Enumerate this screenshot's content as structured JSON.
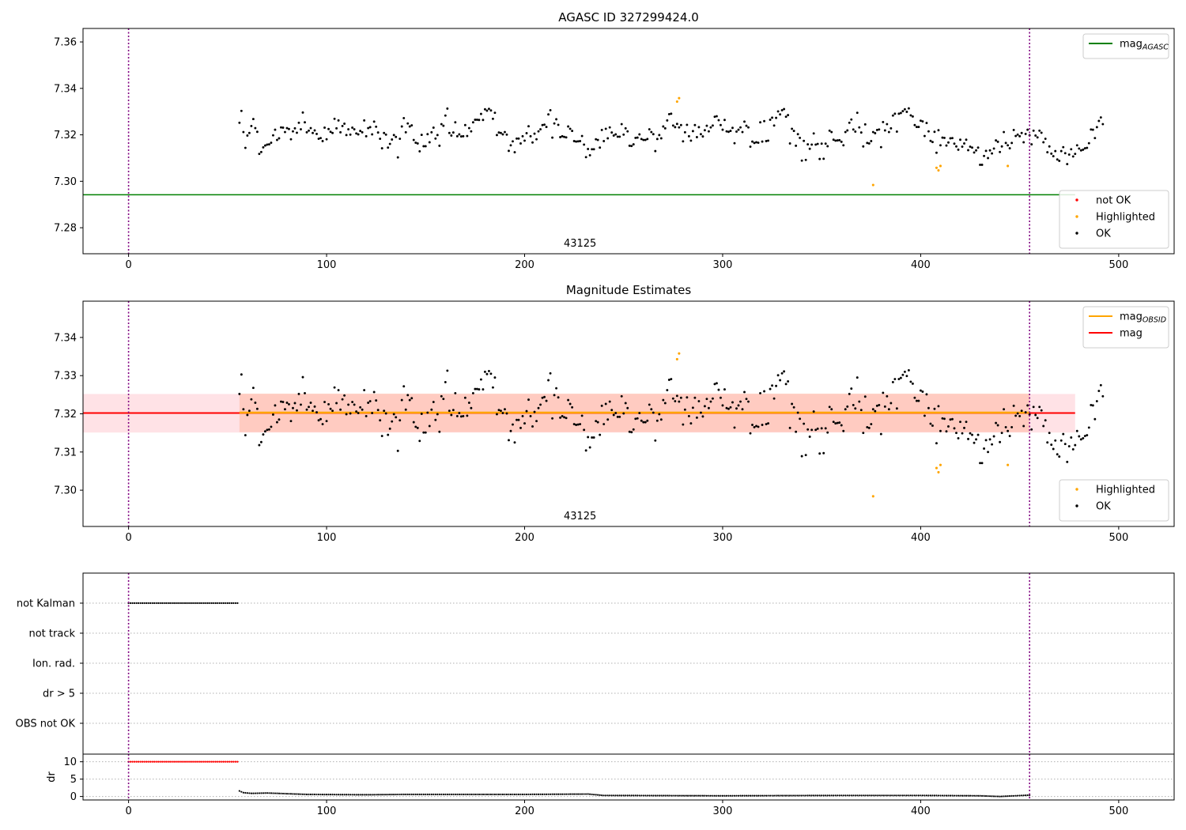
{
  "colors": {
    "ok": "#000000",
    "highlighted": "#ffa500",
    "not_ok": "#ff0000",
    "mag_agasc": "#008000",
    "mag_obsid": "#ffa500",
    "mag": "#ff0000",
    "band_outer": "#ffb6c1",
    "band_inner": "#ffa07a",
    "obs_marker": "#800080",
    "grid": "#b0b0b0"
  },
  "chart_data": [
    {
      "id": "agasc",
      "type": "scatter",
      "title": "AGASC ID 327299424.0",
      "xlim": [
        -23,
        528
      ],
      "ylim": [
        7.2688,
        7.3658
      ],
      "xticks": [
        0,
        100,
        200,
        300,
        400,
        500
      ],
      "yticks": [
        7.28,
        7.3,
        7.32,
        7.34,
        7.36
      ],
      "ytick_labels": [
        "7.28",
        "7.30",
        "7.32",
        "7.34",
        "7.36"
      ],
      "obs_boundaries": [
        0,
        455
      ],
      "obsid_label": {
        "text": "43125",
        "x": 228
      },
      "hlines": [
        {
          "y": 7.2942,
          "x_end": 478,
          "color": "mag_agasc"
        }
      ],
      "legends": [
        {
          "loc": "top-right",
          "items": [
            {
              "label": "mag",
              "sub": "AGASC",
              "kind": "line",
              "color": "mag_agasc"
            }
          ]
        },
        {
          "loc": "bottom-right",
          "items": [
            {
              "label": "not OK",
              "kind": "dot",
              "color": "not_ok"
            },
            {
              "label": "Highlighted",
              "kind": "dot",
              "color": "highlighted"
            },
            {
              "label": "OK",
              "kind": "dot",
              "color": "ok"
            }
          ]
        }
      ],
      "ok_series": {
        "x_start": 56,
        "x_step": 1,
        "y": [
          7.3252,
          7.3303,
          7.3212,
          7.3144,
          7.3197,
          7.3208,
          7.3238,
          7.3268,
          7.3229,
          7.3213,
          7.3118,
          7.3126,
          7.3146,
          7.3154,
          7.3158,
          7.3159,
          7.3166,
          7.3198,
          7.3222,
          7.3178,
          7.3185,
          7.3232,
          7.3231,
          7.3212,
          7.3229,
          7.3225,
          7.3181,
          7.3215,
          7.3228,
          7.3209,
          7.3252,
          7.3224,
          7.3296,
          7.3254,
          7.3211,
          7.3218,
          7.3229,
          7.3208,
          7.3219,
          7.3204,
          7.3183,
          7.3186,
          7.3173,
          7.3231,
          7.3181,
          7.3225,
          7.3213,
          7.3208,
          7.3269,
          7.3228,
          7.3262,
          7.3211,
          7.3238,
          7.3248,
          7.3199,
          7.3224,
          7.3201,
          7.3231,
          7.3224,
          7.3206,
          7.3202,
          7.3217,
          7.3211,
          7.3262,
          7.3194,
          7.3229,
          7.3233,
          7.3202,
          7.3257,
          7.3235,
          7.321,
          7.3183,
          7.3142,
          7.3208,
          7.3201,
          7.3145,
          7.3161,
          7.318,
          7.3199,
          7.3191,
          7.3103,
          7.3183,
          7.3236,
          7.3272,
          7.3211,
          7.3249,
          7.3236,
          7.3241,
          7.3178,
          7.3166,
          7.3163,
          7.3129,
          7.32,
          7.3151,
          7.3151,
          7.3203,
          7.3168,
          7.3211,
          7.3231,
          7.3184,
          7.3199,
          7.3153,
          7.3246,
          7.3239,
          7.3283,
          7.3313,
          7.3208,
          7.3197,
          7.321,
          7.3254,
          7.3194,
          7.3202,
          7.3193,
          7.3194,
          7.3242,
          7.3195,
          7.3229,
          7.3215,
          7.3254,
          7.3265,
          7.3265,
          7.3264,
          7.329,
          7.3264,
          7.331,
          7.3304,
          7.3312,
          7.3305,
          7.3269,
          7.3295,
          7.3199,
          7.321,
          7.3208,
          7.3202,
          7.3212,
          7.3201,
          7.3131,
          7.3155,
          7.3172,
          7.3125,
          7.3184,
          7.3184,
          7.3163,
          7.3194,
          7.3175,
          7.3207,
          7.3237,
          7.3194,
          7.3167,
          7.3205,
          7.3181,
          7.3215,
          7.3224,
          7.3242,
          7.3244,
          7.3234,
          7.3288,
          7.3306,
          7.3188,
          7.3249,
          7.3267,
          7.3243,
          7.319,
          7.3194,
          7.3191,
          7.3189,
          7.3236,
          7.3226,
          7.3217,
          7.3173,
          7.3171,
          7.3172,
          7.3173,
          7.3195,
          7.3158,
          7.3104,
          7.3139,
          7.3112,
          7.3138,
          7.3138,
          7.3181,
          7.3178,
          7.3145,
          7.3221,
          7.3173,
          7.3226,
          7.3185,
          7.3232,
          7.321,
          7.3197,
          7.3202,
          7.3192,
          7.3192,
          7.3246,
          7.3201,
          7.3228,
          7.3215,
          7.3153,
          7.3152,
          7.3159,
          7.3187,
          7.3188,
          7.3202,
          7.3182,
          7.3178,
          7.3178,
          7.3182,
          7.3224,
          7.3212,
          7.3203,
          7.313,
          7.3182,
          7.3199,
          7.3185,
          7.3236,
          7.3228,
          7.3262,
          7.3289,
          7.3291,
          7.324,
          7.3233,
          7.3247,
          7.3232,
          7.3242,
          7.3172,
          7.3211,
          7.3243,
          7.3194,
          7.3175,
          7.3216,
          7.3242,
          7.319,
          7.3233,
          7.3203,
          7.3193,
          7.322,
          7.3239,
          7.3215,
          7.3232,
          7.324,
          7.3278,
          7.328,
          7.3263,
          7.3242,
          7.3222,
          7.3264,
          7.3215,
          7.3213,
          7.3217,
          7.323,
          7.3164,
          7.3214,
          7.3222,
          7.3232,
          7.3212,
          7.3257,
          7.3239,
          7.3232,
          7.3149,
          7.3171,
          7.3165,
          7.3168,
          7.3166,
          7.3254,
          7.3171,
          7.3259,
          7.3173,
          7.3175,
          7.3265,
          7.3274,
          7.324,
          7.3273,
          7.3301,
          7.3288,
          7.3306,
          7.3311,
          7.3278,
          7.3285,
          7.3163,
          7.3226,
          7.3217,
          7.3153,
          7.3203,
          7.3187,
          7.3089,
          7.3174,
          7.3092,
          7.3159,
          7.314,
          7.3158,
          7.3206,
          7.3158,
          7.3161,
          7.3096,
          7.3162,
          7.3097,
          7.3162,
          7.3151,
          7.3218,
          7.3212,
          7.3179,
          7.3175,
          7.3176,
          7.3177,
          7.317,
          7.3155,
          7.3212,
          7.3219,
          7.3252,
          7.3266,
          7.3223,
          7.3214,
          7.3295,
          7.3232,
          7.321,
          7.315,
          7.3245,
          7.3165,
          7.3163,
          7.3173,
          7.3212,
          7.3207,
          7.3221,
          7.3223,
          7.3147,
          7.3255,
          7.3219,
          7.3246,
          7.3212,
          7.3228,
          7.3283,
          7.3291,
          7.3214,
          7.3291,
          7.3294,
          7.3302,
          7.331,
          7.3299,
          7.3314,
          7.3284,
          7.3279,
          7.3242,
          7.3234,
          7.3234,
          7.3261,
          7.3258,
          7.3195,
          7.3251,
          7.3215,
          7.3174,
          7.3169,
          7.3213,
          7.3123,
          7.322,
          7.3155,
          7.3188,
          7.3187,
          7.3154,
          7.3167,
          7.3185,
          7.3186,
          7.3162,
          7.315,
          7.3136,
          7.3179,
          7.3149,
          7.3163,
          7.3179,
          7.3134,
          7.3149,
          7.3145,
          7.3124,
          7.3133,
          7.3145,
          7.3071,
          7.3071,
          7.3109,
          7.3131,
          7.31,
          7.3133,
          7.312,
          7.3141,
          7.3176,
          7.317,
          7.3126,
          7.315,
          7.3212,
          7.3165,
          7.3155,
          7.3142,
          7.3165,
          7.3221,
          7.3195,
          7.3201,
          7.3194,
          7.3208,
          7.3168,
          7.3204,
          7.3222,
          7.3198,
          7.3159,
          7.3218,
          7.3197,
          7.3189,
          7.3218,
          7.3209,
          7.3168,
          7.3183,
          7.3125,
          7.315,
          7.3119,
          7.3108,
          7.313,
          7.3094,
          7.3088,
          7.313,
          7.3147,
          7.3121,
          7.3074,
          7.3115,
          7.3138,
          7.3107,
          7.3118,
          7.3155,
          7.3141,
          7.3133,
          7.3136,
          7.3142,
          7.3144,
          7.3164,
          7.3223,
          7.3222,
          7.3186,
          7.3233,
          7.326,
          7.3275,
          7.3246
        ]
      },
      "highlighted": [
        {
          "x": 277,
          "y": 7.3343
        },
        {
          "x": 278,
          "y": 7.3358
        },
        {
          "x": 376,
          "y": 7.2984
        },
        {
          "x": 408,
          "y": 7.3058
        },
        {
          "x": 409,
          "y": 7.3047
        },
        {
          "x": 410,
          "y": 7.3066
        },
        {
          "x": 444,
          "y": 7.3066
        }
      ]
    },
    {
      "id": "estimates",
      "type": "scatter",
      "title": "Magnitude Estimates",
      "xlim": [
        -23,
        528
      ],
      "ylim": [
        7.2905,
        7.3495
      ],
      "xticks": [
        0,
        100,
        200,
        300,
        400,
        500
      ],
      "yticks": [
        7.3,
        7.31,
        7.32,
        7.33,
        7.34
      ],
      "ytick_labels": [
        "7.30",
        "7.31",
        "7.32",
        "7.33",
        "7.34"
      ],
      "obs_boundaries": [
        0,
        455
      ],
      "obsid_label": {
        "text": "43125",
        "x": 228
      },
      "bands": [
        {
          "x_end": 478,
          "y0": 7.3151,
          "y1": 7.3252,
          "color": "band_outer",
          "opacity": 0.4
        },
        {
          "x_start": 56,
          "x_end": 455,
          "y0": 7.3152,
          "y1": 7.3253,
          "color": "band_inner",
          "opacity": 0.35
        }
      ],
      "hlines": [
        {
          "y": 7.3202,
          "x_end": 478,
          "color": "mag",
          "width": 2
        },
        {
          "y": 7.3203,
          "x_start": 56,
          "x_end": 455,
          "color": "mag_obsid",
          "width": 2.5
        }
      ],
      "legends": [
        {
          "loc": "top-right",
          "items": [
            {
              "label": "mag",
              "sub": "OBSID",
              "kind": "line",
              "color": "mag_obsid"
            },
            {
              "label": "mag",
              "kind": "line",
              "color": "mag"
            }
          ]
        },
        {
          "loc": "bottom-right",
          "items": [
            {
              "label": "Highlighted",
              "kind": "dot",
              "color": "highlighted"
            },
            {
              "label": "OK",
              "kind": "dot",
              "color": "ok"
            }
          ]
        }
      ],
      "ok_series": {
        "same_as": "agasc"
      },
      "highlighted": [
        {
          "x": 277,
          "y": 7.3343
        },
        {
          "x": 278,
          "y": 7.3358
        },
        {
          "x": 376,
          "y": 7.2984
        },
        {
          "x": 408,
          "y": 7.3058
        },
        {
          "x": 409,
          "y": 7.3047
        },
        {
          "x": 410,
          "y": 7.3066
        },
        {
          "x": 444,
          "y": 7.3066
        }
      ]
    },
    {
      "id": "flags",
      "type": "scatter",
      "xlim": [
        -23,
        528
      ],
      "categories": [
        "not Kalman",
        "not track",
        "Ion. rad.",
        "dr > 5",
        "OBS not OK"
      ],
      "flag_rows": [
        {
          "category": "not Kalman",
          "x_start": 0,
          "x_end": 55,
          "x_step": 1
        }
      ],
      "obs_boundaries": [
        0,
        455
      ]
    },
    {
      "id": "dr",
      "type": "scatter",
      "xlim": [
        -23,
        528
      ],
      "ylim": [
        -1,
        12.2
      ],
      "xticks": [
        0,
        100,
        200,
        300,
        400,
        500
      ],
      "yticks": [
        0,
        5,
        10
      ],
      "ylabel": "dr",
      "obs_boundaries": [
        0,
        455
      ],
      "not_ok": {
        "x_start": 0,
        "x_end": 55,
        "y": 10
      },
      "ok_series": {
        "x_start": 56,
        "x_end": 455,
        "knots": [
          [
            56,
            1.6
          ],
          [
            58,
            1.1
          ],
          [
            62,
            0.9
          ],
          [
            70,
            1.0
          ],
          [
            90,
            0.6
          ],
          [
            120,
            0.5
          ],
          [
            140,
            0.6
          ],
          [
            170,
            0.6
          ],
          [
            200,
            0.6
          ],
          [
            232,
            0.7
          ],
          [
            240,
            0.3
          ],
          [
            300,
            0.2
          ],
          [
            360,
            0.3
          ],
          [
            400,
            0.3
          ],
          [
            430,
            0.2
          ],
          [
            440,
            0.0
          ],
          [
            455,
            0.4
          ]
        ]
      }
    }
  ]
}
